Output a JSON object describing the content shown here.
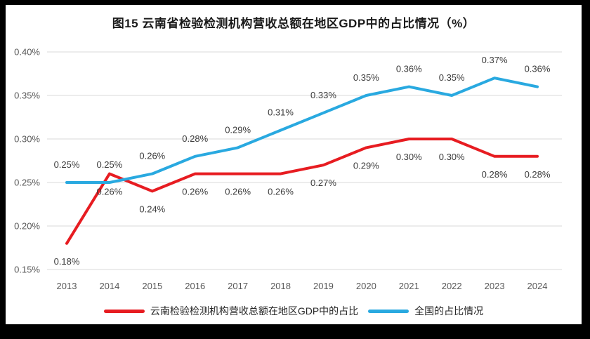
{
  "chart_data": {
    "type": "line",
    "title": "图15 云南省检验检测机构营收总额在地区GDP中的占比情况（%）",
    "categories": [
      "2013",
      "2014",
      "2015",
      "2016",
      "2017",
      "2018",
      "2019",
      "2020",
      "2021",
      "2022",
      "2023",
      "2024"
    ],
    "series": [
      {
        "name": "云南检验检测机构营收总额在地区GDP中的占比",
        "color": "#e71c21",
        "values": [
          0.18,
          0.26,
          0.24,
          0.26,
          0.26,
          0.26,
          0.27,
          0.29,
          0.3,
          0.3,
          0.28,
          0.28
        ],
        "point_labels": [
          "0.18%",
          "0.26%",
          "0.24%",
          "0.26%",
          "0.26%",
          "0.26%",
          "0.27%",
          "0.29%",
          "0.30%",
          "0.30%",
          "0.28%",
          "0.28%"
        ],
        "label_position": "below"
      },
      {
        "name": "全国的占比情况",
        "color": "#29a9e0",
        "values": [
          0.25,
          0.25,
          0.26,
          0.28,
          0.29,
          0.31,
          0.33,
          0.35,
          0.36,
          0.35,
          0.37,
          0.36
        ],
        "point_labels": [
          "0.25%",
          "0.25%",
          "0.26%",
          "0.28%",
          "0.29%",
          "0.31%",
          "0.33%",
          "0.35%",
          "0.36%",
          "0.35%",
          "0.37%",
          "0.36%"
        ],
        "label_position": "above"
      }
    ],
    "y_axis": {
      "min": 0.15,
      "max": 0.4,
      "step": 0.05,
      "tick_labels": [
        "0.15%",
        "0.20%",
        "0.25%",
        "0.30%",
        "0.35%",
        "0.40%"
      ],
      "tick_values": [
        0.15,
        0.2,
        0.25,
        0.3,
        0.35,
        0.4
      ]
    },
    "grid": "horizontal",
    "legend_position": "bottom"
  },
  "frame": {
    "outer_background": "#000000",
    "chart_background": "#ffffff",
    "gridline_color": "#d9d9d9"
  }
}
